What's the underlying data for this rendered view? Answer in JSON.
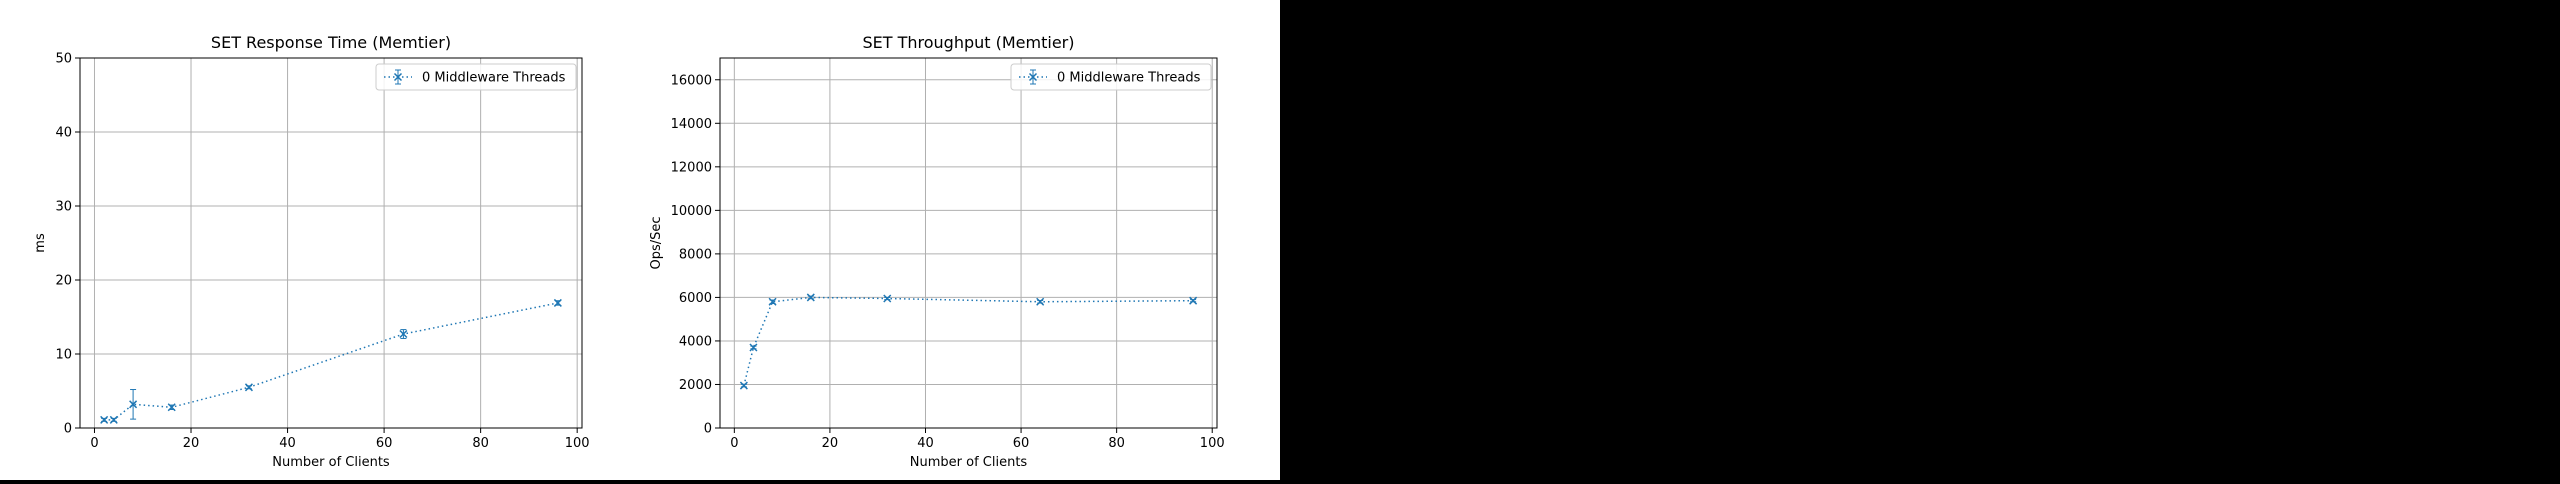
{
  "chart_data": [
    {
      "type": "line",
      "title": "SET Response Time (Memtier)",
      "xlabel": "Number of Clients",
      "ylabel": "ms",
      "xlim": [
        -3,
        101
      ],
      "ylim": [
        0,
        50
      ],
      "xticks": [
        0,
        20,
        40,
        60,
        80,
        100
      ],
      "yticks": [
        0,
        10,
        20,
        30,
        40,
        50
      ],
      "grid": true,
      "legend_position": "top-right",
      "series": [
        {
          "name": "0 Middleware Threads",
          "color": "#1f77b4",
          "line_style": "dotted",
          "marker": "x",
          "x": [
            2,
            4,
            8,
            16,
            32,
            64,
            96
          ],
          "y": [
            1.1,
            1.1,
            3.2,
            2.8,
            5.5,
            12.7,
            16.9
          ],
          "yerr": [
            0.2,
            0.2,
            2.0,
            0.3,
            0.2,
            0.6,
            0.3
          ]
        }
      ]
    },
    {
      "type": "line",
      "title": "SET Throughput (Memtier)",
      "xlabel": "Number of Clients",
      "ylabel": "Ops/Sec",
      "xlim": [
        -3,
        101
      ],
      "ylim": [
        0,
        17000
      ],
      "xticks": [
        0,
        20,
        40,
        60,
        80,
        100
      ],
      "yticks": [
        0,
        2000,
        4000,
        6000,
        8000,
        10000,
        12000,
        14000,
        16000
      ],
      "grid": true,
      "legend_position": "top-right",
      "series": [
        {
          "name": "0 Middleware Threads",
          "color": "#1f77b4",
          "line_style": "dotted",
          "marker": "x",
          "x": [
            2,
            4,
            8,
            16,
            32,
            64,
            96
          ],
          "y": [
            1950,
            3700,
            5800,
            6000,
            5950,
            5800,
            5850
          ],
          "yerr": [
            60,
            60,
            80,
            60,
            50,
            60,
            50
          ]
        }
      ]
    }
  ]
}
